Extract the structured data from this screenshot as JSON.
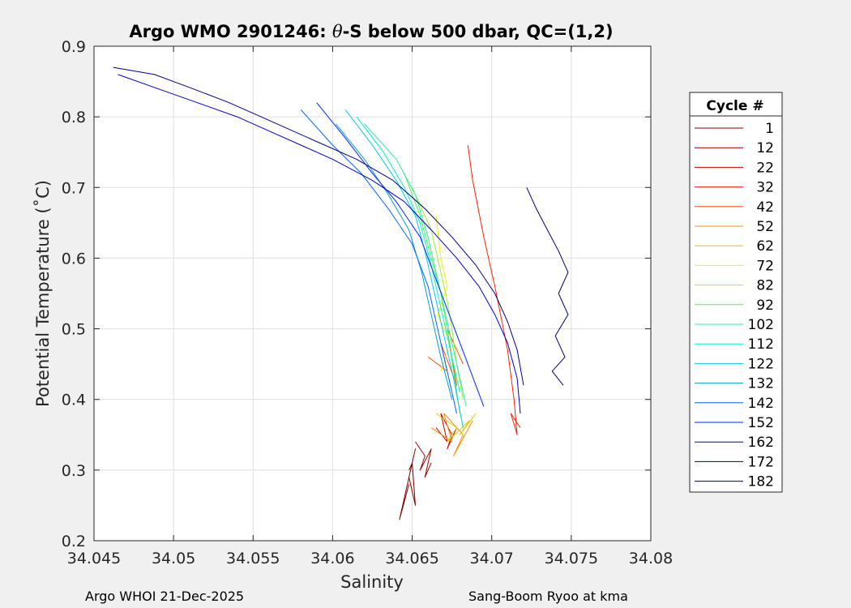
{
  "footer": {
    "left": "Argo WHOI 21-Dec-2025",
    "right": "Sang-Boom Ryoo at kma"
  },
  "chart_data": {
    "type": "line",
    "title_parts": [
      "Argo WMO 2901246: ",
      "θ",
      "-S below 500 dbar,  QC=(1,2)"
    ],
    "xlabel": "Salinity",
    "ylabel": "Potential Temperature (˚C)",
    "xlim": [
      34.045,
      34.08
    ],
    "ylim": [
      0.2,
      0.9
    ],
    "xticks": [
      34.045,
      34.05,
      34.055,
      34.06,
      34.065,
      34.07,
      34.075,
      34.08
    ],
    "xtick_labels": [
      "34.045",
      "34.05",
      "34.055",
      "34.06",
      "34.065",
      "34.07",
      "34.075",
      "34.08"
    ],
    "yticks": [
      0.2,
      0.3,
      0.4,
      0.5,
      0.6,
      0.7,
      0.8,
      0.9
    ],
    "ytick_labels": [
      "0.2",
      "0.3",
      "0.4",
      "0.5",
      "0.6",
      "0.7",
      "0.8",
      "0.9"
    ],
    "grid": true,
    "legend": {
      "title": "Cycle #",
      "placement": "right",
      "entries": [
        {
          "label": "1",
          "color": "#800000"
        },
        {
          "label": "12",
          "color": "#a50000"
        },
        {
          "label": "22",
          "color": "#d20000"
        },
        {
          "label": "32",
          "color": "#ff1e00"
        },
        {
          "label": "42",
          "color": "#ff5000"
        },
        {
          "label": "52",
          "color": "#ff8c00"
        },
        {
          "label": "62",
          "color": "#e6c800"
        },
        {
          "label": "72",
          "color": "#f0f000"
        },
        {
          "label": "82",
          "color": "#a0f028"
        },
        {
          "label": "92",
          "color": "#50f050"
        },
        {
          "label": "102",
          "color": "#28f0a0"
        },
        {
          "label": "112",
          "color": "#00f0d2"
        },
        {
          "label": "122",
          "color": "#00c8f0"
        },
        {
          "label": "132",
          "color": "#00a0c8"
        },
        {
          "label": "142",
          "color": "#0064ff"
        },
        {
          "label": "152",
          "color": "#0028ff"
        },
        {
          "label": "162",
          "color": "#0000d2"
        },
        {
          "label": "172",
          "color": "#00008c"
        },
        {
          "label": "182",
          "color": "#000064"
        }
      ]
    },
    "series": [
      {
        "name": "1",
        "color": "#800000",
        "points": [
          [
            34.0648,
            0.28
          ],
          [
            34.0642,
            0.23
          ],
          [
            34.0652,
            0.33
          ],
          [
            34.0648,
            0.29
          ],
          [
            34.0652,
            0.25
          ],
          [
            34.065,
            0.31
          ],
          [
            34.0648,
            0.3
          ]
        ]
      },
      {
        "name": "12",
        "color": "#a50000",
        "points": [
          [
            34.0652,
            0.34
          ],
          [
            34.0658,
            0.32
          ],
          [
            34.0655,
            0.3
          ],
          [
            34.0662,
            0.33
          ],
          [
            34.0658,
            0.29
          ],
          [
            34.0662,
            0.31
          ]
        ]
      },
      {
        "name": "22",
        "color": "#d20000",
        "points": [
          [
            34.0665,
            0.36
          ],
          [
            34.0672,
            0.34
          ],
          [
            34.0668,
            0.38
          ],
          [
            34.0675,
            0.35
          ],
          [
            34.0672,
            0.33
          ],
          [
            34.0678,
            0.36
          ]
        ]
      },
      {
        "name": "32",
        "color": "#ff1e00",
        "points": [
          [
            34.0685,
            0.76
          ],
          [
            34.0688,
            0.71
          ],
          [
            34.0695,
            0.63
          ],
          [
            34.0702,
            0.56
          ],
          [
            34.071,
            0.47
          ],
          [
            34.0714,
            0.4
          ],
          [
            34.0716,
            0.35
          ],
          [
            34.0712,
            0.38
          ],
          [
            34.0718,
            0.36
          ]
        ]
      },
      {
        "name": "42",
        "color": "#ff5000",
        "points": [
          [
            34.066,
            0.46
          ],
          [
            34.0672,
            0.44
          ],
          [
            34.0668,
            0.48
          ],
          [
            34.0678,
            0.42
          ],
          [
            34.0672,
            0.5
          ],
          [
            34.0682,
            0.45
          ]
        ]
      },
      {
        "name": "52",
        "color": "#ff8c00",
        "points": [
          [
            34.0662,
            0.36
          ],
          [
            34.0675,
            0.34
          ],
          [
            34.067,
            0.38
          ],
          [
            34.0682,
            0.35
          ],
          [
            34.0676,
            0.32
          ],
          [
            34.0688,
            0.37
          ]
        ]
      },
      {
        "name": "62",
        "color": "#e6c800",
        "points": [
          [
            34.0665,
            0.38
          ],
          [
            34.0678,
            0.36
          ],
          [
            34.0672,
            0.34
          ],
          [
            34.0686,
            0.37
          ],
          [
            34.068,
            0.35
          ],
          [
            34.069,
            0.38
          ]
        ]
      },
      {
        "name": "72",
        "color": "#f0f000",
        "points": [
          [
            34.0665,
            0.66
          ],
          [
            34.0668,
            0.6
          ],
          [
            34.0672,
            0.56
          ],
          [
            34.0666,
            0.52
          ],
          [
            34.0674,
            0.48
          ],
          [
            34.0668,
            0.44
          ]
        ]
      },
      {
        "name": "82",
        "color": "#a0f028",
        "points": [
          [
            34.065,
            0.7
          ],
          [
            34.0662,
            0.64
          ],
          [
            34.0668,
            0.58
          ],
          [
            34.0672,
            0.54
          ],
          [
            34.0675,
            0.5
          ],
          [
            34.0678,
            0.45
          ],
          [
            34.0682,
            0.4
          ]
        ]
      },
      {
        "name": "92",
        "color": "#50f050",
        "points": [
          [
            34.0645,
            0.72
          ],
          [
            34.0655,
            0.66
          ],
          [
            34.0662,
            0.6
          ],
          [
            34.0668,
            0.55
          ],
          [
            34.0672,
            0.5
          ],
          [
            34.0676,
            0.44
          ],
          [
            34.068,
            0.38
          ]
        ]
      },
      {
        "name": "102",
        "color": "#28f0a0",
        "points": [
          [
            34.062,
            0.79
          ],
          [
            34.064,
            0.74
          ],
          [
            34.0652,
            0.69
          ],
          [
            34.066,
            0.63
          ],
          [
            34.0666,
            0.57
          ],
          [
            34.0672,
            0.51
          ],
          [
            34.0678,
            0.45
          ],
          [
            34.0684,
            0.39
          ]
        ]
      },
      {
        "name": "112",
        "color": "#00f0d2",
        "points": [
          [
            34.0615,
            0.8
          ],
          [
            34.0632,
            0.75
          ],
          [
            34.0645,
            0.7
          ],
          [
            34.0655,
            0.65
          ],
          [
            34.0662,
            0.59
          ],
          [
            34.0668,
            0.53
          ],
          [
            34.0674,
            0.47
          ],
          [
            34.068,
            0.41
          ]
        ]
      },
      {
        "name": "122",
        "color": "#00c8f0",
        "points": [
          [
            34.0608,
            0.81
          ],
          [
            34.0625,
            0.76
          ],
          [
            34.064,
            0.71
          ],
          [
            34.0652,
            0.66
          ],
          [
            34.0658,
            0.61
          ],
          [
            34.0664,
            0.55
          ],
          [
            34.067,
            0.49
          ],
          [
            34.0676,
            0.43
          ],
          [
            34.0682,
            0.36
          ]
        ]
      },
      {
        "name": "132",
        "color": "#00a0c8",
        "points": [
          [
            34.0602,
            0.79
          ],
          [
            34.062,
            0.74
          ],
          [
            34.0635,
            0.69
          ],
          [
            34.0648,
            0.64
          ],
          [
            34.0656,
            0.58
          ],
          [
            34.0662,
            0.52
          ],
          [
            34.0668,
            0.46
          ],
          [
            34.0675,
            0.4
          ]
        ]
      },
      {
        "name": "142",
        "color": "#0064ff",
        "points": [
          [
            34.058,
            0.81
          ],
          [
            34.06,
            0.76
          ],
          [
            34.0618,
            0.72
          ],
          [
            34.0635,
            0.67
          ],
          [
            34.065,
            0.62
          ],
          [
            34.066,
            0.56
          ],
          [
            34.0666,
            0.5
          ],
          [
            34.0672,
            0.44
          ],
          [
            34.0678,
            0.38
          ]
        ]
      },
      {
        "name": "152",
        "color": "#0028ff",
        "points": [
          [
            34.059,
            0.82
          ],
          [
            34.0608,
            0.77
          ],
          [
            34.0625,
            0.72
          ],
          [
            34.064,
            0.68
          ],
          [
            34.0655,
            0.63
          ],
          [
            34.0665,
            0.57
          ],
          [
            34.0675,
            0.51
          ],
          [
            34.0685,
            0.45
          ],
          [
            34.0695,
            0.39
          ]
        ]
      },
      {
        "name": "162",
        "color": "#0000d2",
        "points": [
          [
            34.0465,
            0.86
          ],
          [
            34.049,
            0.84
          ],
          [
            34.0515,
            0.82
          ],
          [
            34.054,
            0.8
          ],
          [
            34.056,
            0.78
          ],
          [
            34.058,
            0.76
          ],
          [
            34.06,
            0.74
          ],
          [
            34.0625,
            0.71
          ],
          [
            34.0645,
            0.68
          ],
          [
            34.0662,
            0.64
          ],
          [
            34.0678,
            0.6
          ],
          [
            34.0692,
            0.56
          ],
          [
            34.0702,
            0.52
          ],
          [
            34.071,
            0.48
          ],
          [
            34.0716,
            0.43
          ],
          [
            34.0718,
            0.38
          ]
        ]
      },
      {
        "name": "172",
        "color": "#00008c",
        "points": [
          [
            34.0462,
            0.87
          ],
          [
            34.0488,
            0.86
          ],
          [
            34.0512,
            0.84
          ],
          [
            34.0535,
            0.82
          ],
          [
            34.0555,
            0.8
          ],
          [
            34.0575,
            0.78
          ],
          [
            34.0595,
            0.76
          ],
          [
            34.0615,
            0.74
          ],
          [
            34.0638,
            0.71
          ],
          [
            34.0658,
            0.67
          ],
          [
            34.0675,
            0.63
          ],
          [
            34.069,
            0.59
          ],
          [
            34.0702,
            0.55
          ],
          [
            34.071,
            0.51
          ],
          [
            34.0716,
            0.47
          ],
          [
            34.072,
            0.42
          ]
        ]
      },
      {
        "name": "182",
        "color": "#000064",
        "points": [
          [
            34.0722,
            0.7
          ],
          [
            34.0728,
            0.67
          ],
          [
            34.0735,
            0.64
          ],
          [
            34.0742,
            0.61
          ],
          [
            34.0748,
            0.58
          ],
          [
            34.0742,
            0.55
          ],
          [
            34.0748,
            0.52
          ],
          [
            34.074,
            0.49
          ],
          [
            34.0746,
            0.46
          ],
          [
            34.0738,
            0.44
          ],
          [
            34.0745,
            0.42
          ]
        ]
      }
    ]
  }
}
